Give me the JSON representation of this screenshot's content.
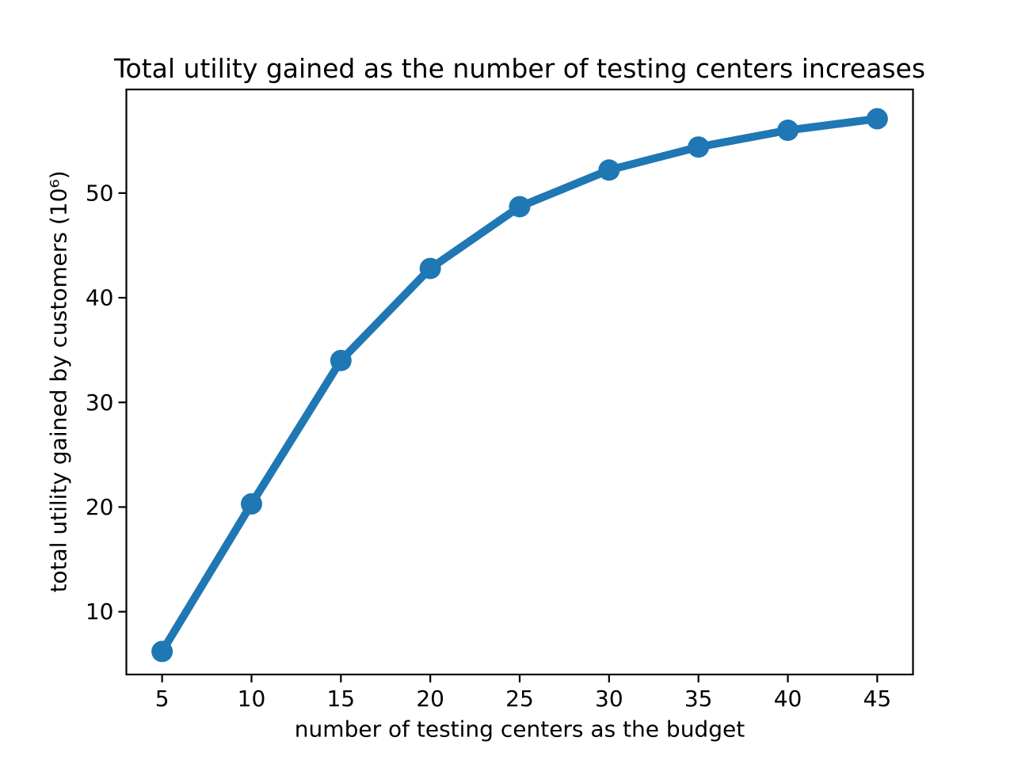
{
  "chart_data": {
    "type": "line",
    "title": "Total utility gained as the number of testing centers increases",
    "xlabel": "number of testing centers as the budget",
    "ylabel": "total utility gained by customers (10⁶)",
    "x": [
      5,
      10,
      15,
      20,
      25,
      30,
      35,
      40,
      45
    ],
    "y": [
      6.2,
      20.3,
      34.0,
      42.8,
      48.7,
      52.2,
      54.4,
      56.0,
      57.1
    ],
    "xticks": [
      5,
      10,
      15,
      20,
      25,
      30,
      35,
      40,
      45
    ],
    "yticks": [
      10,
      20,
      30,
      40,
      50
    ],
    "xlim": [
      3,
      47
    ],
    "ylim": [
      4,
      59.9
    ],
    "grid": false,
    "legend": null,
    "marker": "circle",
    "line_color": "#1f77b4",
    "spine_color": "#000000",
    "tick_color": "#000000",
    "background": "#ffffff",
    "line_width": 10,
    "marker_radius": 13.5
  }
}
